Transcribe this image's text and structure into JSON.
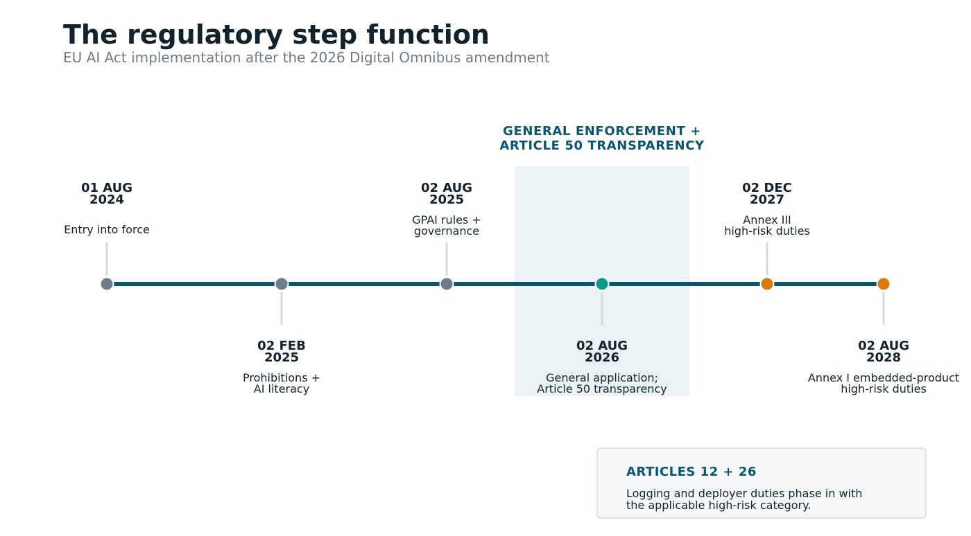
{
  "header": {
    "title": "The regulatory step function",
    "subtitle": "EU AI Act implementation after the 2026 Digital Omnibus amendment"
  },
  "phase": {
    "label_line1": "GENERAL ENFORCEMENT +",
    "label_line2": "ARTICLE 50 TRANSPARENCY"
  },
  "colors": {
    "axis": "#0b5570",
    "past": "#6f7b85",
    "current": "#0e9688",
    "future": "#d97a0a"
  },
  "milestones": [
    {
      "date_line1": "01 AUG",
      "date_line2": "2024",
      "desc_line1": "Entry into force",
      "desc_line2": "",
      "status": "past"
    },
    {
      "date_line1": "02 FEB",
      "date_line2": "2025",
      "desc_line1": "Prohibitions +",
      "desc_line2": "AI literacy",
      "status": "past"
    },
    {
      "date_line1": "02 AUG",
      "date_line2": "2025",
      "desc_line1": "GPAI rules +",
      "desc_line2": "governance",
      "status": "past"
    },
    {
      "date_line1": "02 AUG",
      "date_line2": "2026",
      "desc_line1": "General application;",
      "desc_line2": "Article 50 transparency",
      "status": "current"
    },
    {
      "date_line1": "02 DEC",
      "date_line2": "2027",
      "desc_line1": "Annex III",
      "desc_line2": "high-risk duties",
      "status": "future"
    },
    {
      "date_line1": "02 AUG",
      "date_line2": "2028",
      "desc_line1": "Annex I embedded-product",
      "desc_line2": "high-risk duties",
      "status": "future"
    }
  ],
  "note": {
    "title": "ARTICLES 12 + 26",
    "body_line1": "Logging and deployer duties phase in with",
    "body_line2": "the applicable high-risk category."
  }
}
